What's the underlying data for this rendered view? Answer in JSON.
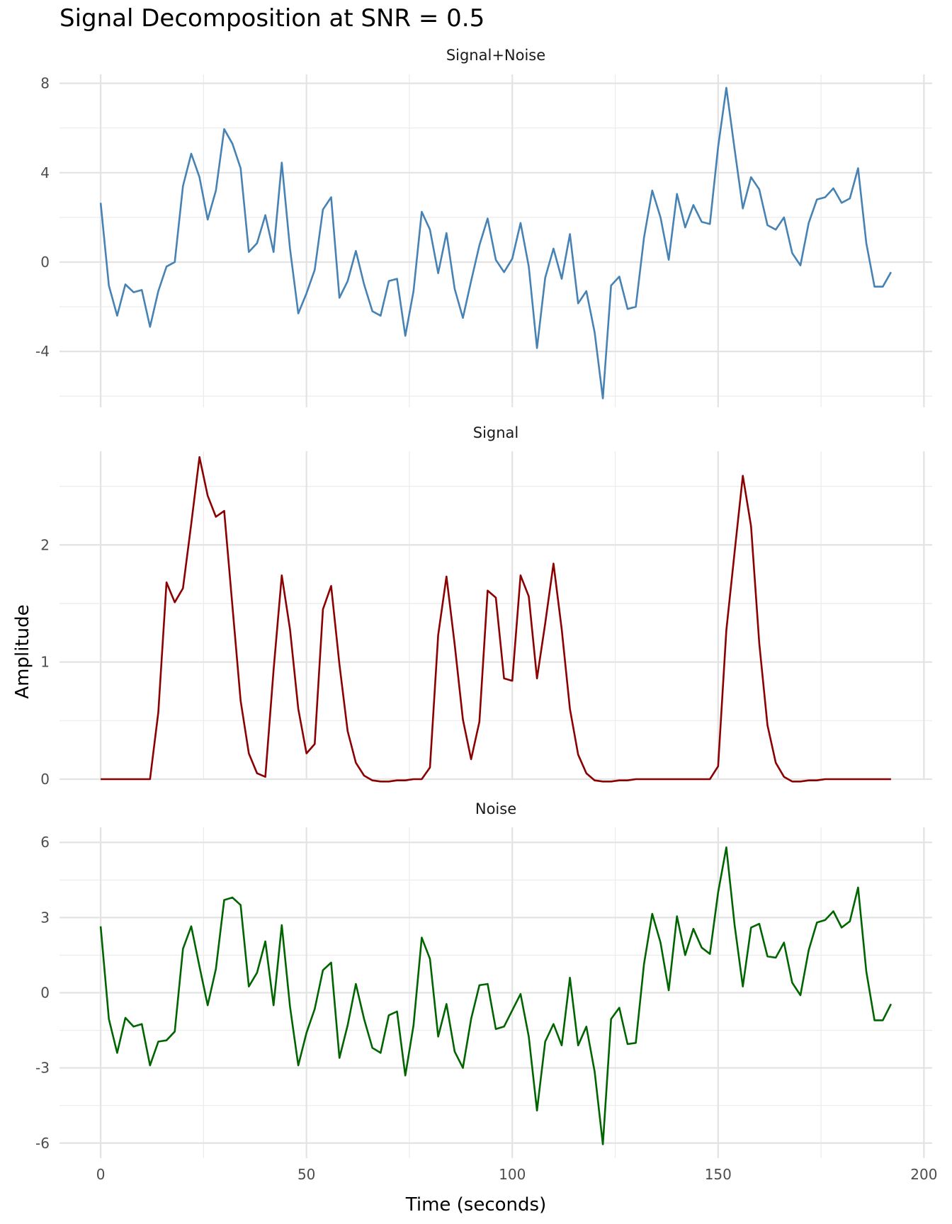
{
  "chart_title": "Signal Decomposition at SNR = 0.5",
  "chart_data": {
    "type": "line",
    "title": "Signal Decomposition at SNR = 0.5",
    "xlabel": "Time (seconds)",
    "ylabel": "Amplitude",
    "xlim": [
      -10,
      202
    ],
    "x_ticks": [
      0,
      50,
      100,
      150,
      200
    ],
    "grid": true,
    "x": [
      0,
      2,
      4,
      6,
      8,
      10,
      12,
      14,
      16,
      18,
      20,
      22,
      24,
      26,
      28,
      30,
      32,
      34,
      36,
      38,
      40,
      42,
      44,
      46,
      48,
      50,
      52,
      54,
      56,
      58,
      60,
      62,
      64,
      66,
      68,
      70,
      72,
      74,
      76,
      78,
      80,
      82,
      84,
      86,
      88,
      90,
      92,
      94,
      96,
      98,
      100,
      102,
      104,
      106,
      108,
      110,
      112,
      114,
      116,
      118,
      120,
      122,
      124,
      126,
      128,
      130,
      132,
      134,
      136,
      138,
      140,
      142,
      144,
      146,
      148,
      150,
      152,
      154,
      156,
      158,
      160,
      162,
      164,
      166,
      168,
      170,
      172,
      174,
      176,
      178,
      180,
      182,
      184,
      186,
      188,
      190,
      192
    ],
    "panels": [
      {
        "name": "Signal+Noise",
        "color": "#4682B4",
        "ylim": [
          -6.5,
          8.4
        ],
        "y_ticks": [
          -4,
          0,
          4,
          8
        ],
        "y_tick_labels": [
          "-4",
          "0",
          "4",
          "8"
        ],
        "values": [
          2.65,
          -1.05,
          -2.4,
          -1.0,
          -1.35,
          -1.25,
          -2.9,
          -1.3,
          -0.2,
          0.0,
          3.4,
          4.85,
          3.8,
          1.9,
          3.2,
          5.95,
          5.3,
          4.2,
          0.45,
          0.85,
          2.1,
          0.45,
          4.45,
          0.6,
          -2.3,
          -1.4,
          -0.35,
          2.35,
          2.9,
          -1.6,
          -0.85,
          0.5,
          -1.0,
          -2.2,
          -2.4,
          -0.85,
          -0.75,
          -3.3,
          -1.3,
          2.25,
          1.45,
          -0.5,
          1.3,
          -1.2,
          -2.5,
          -0.85,
          0.75,
          1.95,
          0.1,
          -0.45,
          0.15,
          1.75,
          -0.2,
          -3.85,
          -0.7,
          0.6,
          -0.75,
          1.25,
          -1.85,
          -1.3,
          -3.15,
          -6.1,
          -1.05,
          -0.65,
          -2.1,
          -2.0,
          1.1,
          3.2,
          2.0,
          0.1,
          3.05,
          1.55,
          2.55,
          1.8,
          1.7,
          5.15,
          7.8,
          5.05,
          2.4,
          3.8,
          3.25,
          1.65,
          1.45,
          2.0,
          0.4,
          -0.15,
          1.75,
          2.8,
          2.9,
          3.3,
          2.65,
          2.85,
          4.2,
          0.85,
          -1.1,
          -1.1,
          -0.45
        ]
      },
      {
        "name": "Signal",
        "color": "#8B0000",
        "ylim": [
          0,
          2.8
        ],
        "y_ticks": [
          0,
          1,
          2
        ],
        "y_tick_labels": [
          "0",
          "1",
          "2"
        ],
        "values": [
          0,
          0,
          0,
          0,
          0,
          0,
          0,
          0.57,
          1.68,
          1.51,
          1.63,
          2.18,
          2.75,
          2.42,
          2.24,
          2.29,
          1.48,
          0.67,
          0.22,
          0.05,
          0.02,
          0.93,
          1.74,
          1.28,
          0.6,
          0.22,
          0.3,
          1.45,
          1.65,
          0.98,
          0.41,
          0.14,
          0.03,
          -0.01,
          -0.02,
          -0.02,
          -0.01,
          -0.01,
          0,
          0,
          0.1,
          1.23,
          1.73,
          1.15,
          0.51,
          0.17,
          0.49,
          1.61,
          1.55,
          0.86,
          0.84,
          1.74,
          1.56,
          0.86,
          1.33,
          1.84,
          1.28,
          0.6,
          0.21,
          0.05,
          -0.01,
          -0.02,
          -0.02,
          -0.01,
          -0.01,
          0,
          0,
          0,
          0,
          0,
          0,
          0,
          0,
          0,
          0,
          0.11,
          1.27,
          1.94,
          2.59,
          2.16,
          1.16,
          0.46,
          0.14,
          0.02,
          -0.02,
          -0.02,
          -0.01,
          -0.01,
          0,
          0,
          0,
          0,
          0,
          0,
          0,
          0,
          0
        ]
      },
      {
        "name": "Noise",
        "color": "#006400",
        "ylim": [
          -6.6,
          6.6
        ],
        "y_ticks": [
          -6,
          -3,
          0,
          3,
          6
        ],
        "y_tick_labels": [
          "-6",
          "-3",
          "0",
          "3",
          "6"
        ],
        "values": [
          2.65,
          -1.05,
          -2.4,
          -1.0,
          -1.35,
          -1.25,
          -2.9,
          -1.95,
          -1.9,
          -1.55,
          1.75,
          2.65,
          1.05,
          -0.5,
          0.95,
          3.7,
          3.8,
          3.5,
          0.25,
          0.8,
          2.05,
          -0.5,
          2.7,
          -0.55,
          -2.9,
          -1.6,
          -0.65,
          0.9,
          1.2,
          -2.6,
          -1.3,
          0.35,
          -1.05,
          -2.2,
          -2.4,
          -0.9,
          -0.75,
          -3.3,
          -1.3,
          2.2,
          1.35,
          -1.75,
          -0.45,
          -2.35,
          -3.0,
          -1.05,
          0.3,
          0.35,
          -1.45,
          -1.35,
          -0.7,
          -0.05,
          -1.75,
          -4.7,
          -1.95,
          -1.25,
          -2.1,
          0.6,
          -2.1,
          -1.35,
          -3.15,
          -6.05,
          -1.05,
          -0.6,
          -2.05,
          -2.0,
          1.15,
          3.15,
          2.0,
          0.1,
          3.05,
          1.5,
          2.55,
          1.8,
          1.55,
          4.0,
          5.8,
          2.7,
          0.25,
          2.6,
          2.75,
          1.45,
          1.4,
          2.0,
          0.4,
          -0.1,
          1.7,
          2.8,
          2.9,
          3.25,
          2.6,
          2.85,
          4.2,
          0.85,
          -1.1,
          -1.1,
          -0.45
        ]
      }
    ]
  }
}
